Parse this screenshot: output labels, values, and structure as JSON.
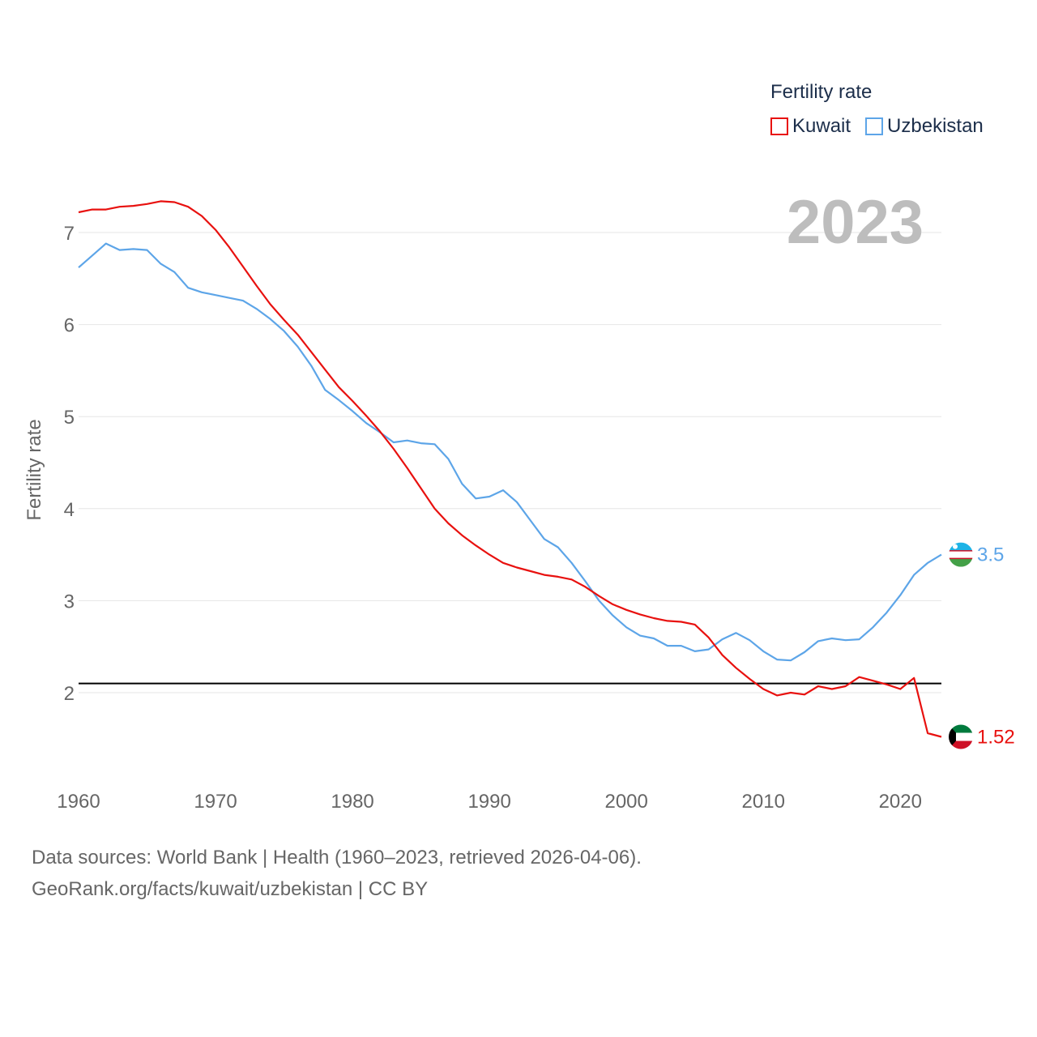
{
  "legend": {
    "title": "Fertility rate",
    "items": [
      {
        "name": "Kuwait",
        "color": "#e8110f"
      },
      {
        "name": "Uzbekistan",
        "color": "#5da5e8"
      }
    ]
  },
  "footer": {
    "line1": "Data sources: World Bank | Health (1960–2023, retrieved 2026-04-06).",
    "line2": "GeoRank.org/facts/kuwait/uzbekistan | CC BY"
  },
  "chart_data": {
    "type": "line",
    "title": "2023",
    "xlabel": "",
    "ylabel": "Fertility rate",
    "xlim": [
      1960,
      2023
    ],
    "ylim": [
      1.0,
      7.7
    ],
    "x_ticks": [
      "1960",
      "1970",
      "1980",
      "1990",
      "2000",
      "2010",
      "2020"
    ],
    "y_ticks": [
      "2",
      "3",
      "4",
      "5",
      "6",
      "7"
    ],
    "reference_line": 2.1,
    "x": [
      1960,
      1961,
      1962,
      1963,
      1964,
      1965,
      1966,
      1967,
      1968,
      1969,
      1970,
      1971,
      1972,
      1973,
      1974,
      1975,
      1976,
      1977,
      1978,
      1979,
      1980,
      1981,
      1982,
      1983,
      1984,
      1985,
      1986,
      1987,
      1988,
      1989,
      1990,
      1991,
      1992,
      1993,
      1994,
      1995,
      1996,
      1997,
      1998,
      1999,
      2000,
      2001,
      2002,
      2003,
      2004,
      2005,
      2006,
      2007,
      2008,
      2009,
      2010,
      2011,
      2012,
      2013,
      2014,
      2015,
      2016,
      2017,
      2018,
      2019,
      2020,
      2021,
      2022,
      2023
    ],
    "series": [
      {
        "name": "Kuwait",
        "color": "#e8110f",
        "end_label": "1.52",
        "values": [
          7.22,
          7.25,
          7.25,
          7.28,
          7.29,
          7.31,
          7.34,
          7.33,
          7.28,
          7.18,
          7.03,
          6.84,
          6.63,
          6.42,
          6.22,
          6.05,
          5.89,
          5.7,
          5.51,
          5.32,
          5.17,
          5.01,
          4.84,
          4.65,
          4.44,
          4.22,
          4.0,
          3.84,
          3.71,
          3.6,
          3.5,
          3.41,
          3.36,
          3.32,
          3.28,
          3.26,
          3.23,
          3.15,
          3.05,
          2.96,
          2.9,
          2.85,
          2.81,
          2.78,
          2.77,
          2.74,
          2.6,
          2.41,
          2.27,
          2.15,
          2.04,
          1.97,
          2.0,
          1.98,
          2.07,
          2.04,
          2.07,
          2.17,
          2.13,
          2.09,
          2.04,
          2.16,
          1.56,
          1.52
        ]
      },
      {
        "name": "Uzbekistan",
        "color": "#5da5e8",
        "end_label": "3.5",
        "values": [
          6.62,
          6.75,
          6.88,
          6.81,
          6.82,
          6.81,
          6.66,
          6.57,
          6.4,
          6.35,
          6.32,
          6.29,
          6.26,
          6.17,
          6.06,
          5.93,
          5.76,
          5.55,
          5.29,
          5.18,
          5.06,
          4.93,
          4.83,
          4.72,
          4.74,
          4.71,
          4.7,
          4.54,
          4.27,
          4.11,
          4.13,
          4.2,
          4.07,
          3.87,
          3.67,
          3.58,
          3.41,
          3.21,
          3.0,
          2.84,
          2.71,
          2.62,
          2.59,
          2.51,
          2.51,
          2.45,
          2.47,
          2.58,
          2.65,
          2.57,
          2.45,
          2.36,
          2.35,
          2.44,
          2.56,
          2.59,
          2.57,
          2.58,
          2.71,
          2.87,
          3.06,
          3.28,
          3.41,
          3.5
        ]
      }
    ]
  }
}
